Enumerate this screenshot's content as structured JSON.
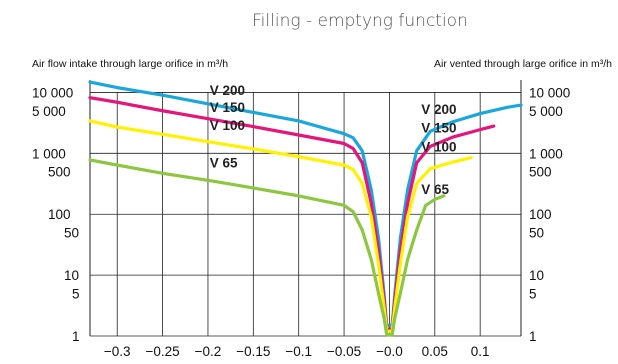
{
  "chart_data": {
    "type": "line",
    "title": "Filling - emptyng function",
    "ylabel_left": "Air flow intake through large orifice in m³/h",
    "ylabel_right": "Air vented through large orifice in m³/h",
    "xlim": [
      -0.33,
      0.145
    ],
    "ylim": [
      1,
      16000
    ],
    "y_scale": "log",
    "x_ticks": [
      -0.3,
      -0.25,
      -0.2,
      -0.15,
      -0.1,
      -0.05,
      0.0,
      0.05,
      0.1
    ],
    "x_tick_labels": [
      "−0.3",
      "−0.25",
      "−0.2",
      "−0.15",
      "−0.1",
      "−0.05",
      "−0.0",
      "0.05",
      "0.1"
    ],
    "y_ticks": [
      1,
      5,
      10,
      50,
      100,
      500,
      1000,
      5000,
      10000
    ],
    "y_tick_labels": [
      "1",
      "5",
      "10",
      "50",
      "100",
      "500",
      "1 000",
      "5 000",
      "10 000"
    ],
    "y_gridlines": [
      1,
      10,
      100,
      1000,
      10000
    ],
    "x_gridlines": [
      -0.3,
      -0.25,
      -0.2,
      -0.15,
      -0.1,
      -0.05,
      0.0,
      0.05,
      0.1
    ],
    "grid": true,
    "series": [
      {
        "name": "V 200",
        "color": "#1aa7dc",
        "points": [
          [
            -0.33,
            14800
          ],
          [
            -0.3,
            12000
          ],
          [
            -0.25,
            9000
          ],
          [
            -0.2,
            6500
          ],
          [
            -0.15,
            4700
          ],
          [
            -0.1,
            3400
          ],
          [
            -0.05,
            2100
          ],
          [
            -0.04,
            1800
          ],
          [
            -0.03,
            1100
          ],
          [
            -0.02,
            250
          ],
          [
            -0.012,
            40
          ],
          [
            -0.006,
            5
          ],
          [
            -0.003,
            1.5
          ],
          [
            0.003,
            1.5
          ],
          [
            0.006,
            5
          ],
          [
            0.012,
            40
          ],
          [
            0.02,
            250
          ],
          [
            0.03,
            1100
          ],
          [
            0.045,
            2300
          ],
          [
            0.07,
            3300
          ],
          [
            0.1,
            4500
          ],
          [
            0.13,
            5700
          ],
          [
            0.145,
            6200
          ]
        ]
      },
      {
        "name": "V 150",
        "color": "#e4157b",
        "points": [
          [
            -0.33,
            8200
          ],
          [
            -0.3,
            6900
          ],
          [
            -0.25,
            5000
          ],
          [
            -0.2,
            3700
          ],
          [
            -0.15,
            2750
          ],
          [
            -0.1,
            2000
          ],
          [
            -0.05,
            1450
          ],
          [
            -0.04,
            1200
          ],
          [
            -0.03,
            700
          ],
          [
            -0.02,
            150
          ],
          [
            -0.012,
            25
          ],
          [
            -0.006,
            4
          ],
          [
            -0.003,
            1.3
          ],
          [
            0.003,
            1.3
          ],
          [
            0.006,
            4
          ],
          [
            0.012,
            25
          ],
          [
            0.02,
            150
          ],
          [
            0.03,
            700
          ],
          [
            0.045,
            1300
          ],
          [
            0.07,
            1850
          ],
          [
            0.1,
            2450
          ],
          [
            0.115,
            2800
          ]
        ]
      },
      {
        "name": "V 100",
        "color": "#fff200",
        "points": [
          [
            -0.33,
            3400
          ],
          [
            -0.3,
            2700
          ],
          [
            -0.25,
            2050
          ],
          [
            -0.2,
            1550
          ],
          [
            -0.15,
            1180
          ],
          [
            -0.1,
            880
          ],
          [
            -0.05,
            640
          ],
          [
            -0.04,
            540
          ],
          [
            -0.03,
            320
          ],
          [
            -0.02,
            90
          ],
          [
            -0.012,
            15
          ],
          [
            -0.006,
            3
          ],
          [
            -0.003,
            1.2
          ],
          [
            0.003,
            1.2
          ],
          [
            0.006,
            3
          ],
          [
            0.012,
            15
          ],
          [
            0.02,
            90
          ],
          [
            0.03,
            320
          ],
          [
            0.045,
            560
          ],
          [
            0.07,
            720
          ],
          [
            0.09,
            850
          ]
        ]
      },
      {
        "name": "V 65",
        "color": "#8dc63f",
        "points": [
          [
            -0.33,
            780
          ],
          [
            -0.3,
            640
          ],
          [
            -0.25,
            470
          ],
          [
            -0.2,
            360
          ],
          [
            -0.15,
            270
          ],
          [
            -0.1,
            200
          ],
          [
            -0.05,
            140
          ],
          [
            -0.04,
            110
          ],
          [
            -0.03,
            55
          ],
          [
            -0.02,
            18
          ],
          [
            -0.012,
            5
          ],
          [
            -0.006,
            2
          ],
          [
            -0.003,
            1.05
          ],
          [
            0.003,
            1.05
          ],
          [
            0.006,
            2
          ],
          [
            0.012,
            5
          ],
          [
            0.02,
            18
          ],
          [
            0.03,
            55
          ],
          [
            0.04,
            140
          ],
          [
            0.05,
            175
          ],
          [
            0.06,
            200
          ]
        ]
      }
    ],
    "annotations": [
      {
        "text": "V 200",
        "x": -0.198,
        "y": 9000
      },
      {
        "text": "V 150",
        "x": -0.198,
        "y": 4800
      },
      {
        "text": "V 100",
        "x": -0.198,
        "y": 2400
      },
      {
        "text": "V 65",
        "x": -0.198,
        "y": 590
      },
      {
        "text": "V 200",
        "x": 0.035,
        "y": 4400
      },
      {
        "text": "V 150",
        "x": 0.035,
        "y": 2200
      },
      {
        "text": "V 100",
        "x": 0.035,
        "y": 1080
      },
      {
        "text": "V 65",
        "x": 0.035,
        "y": 215
      }
    ]
  }
}
